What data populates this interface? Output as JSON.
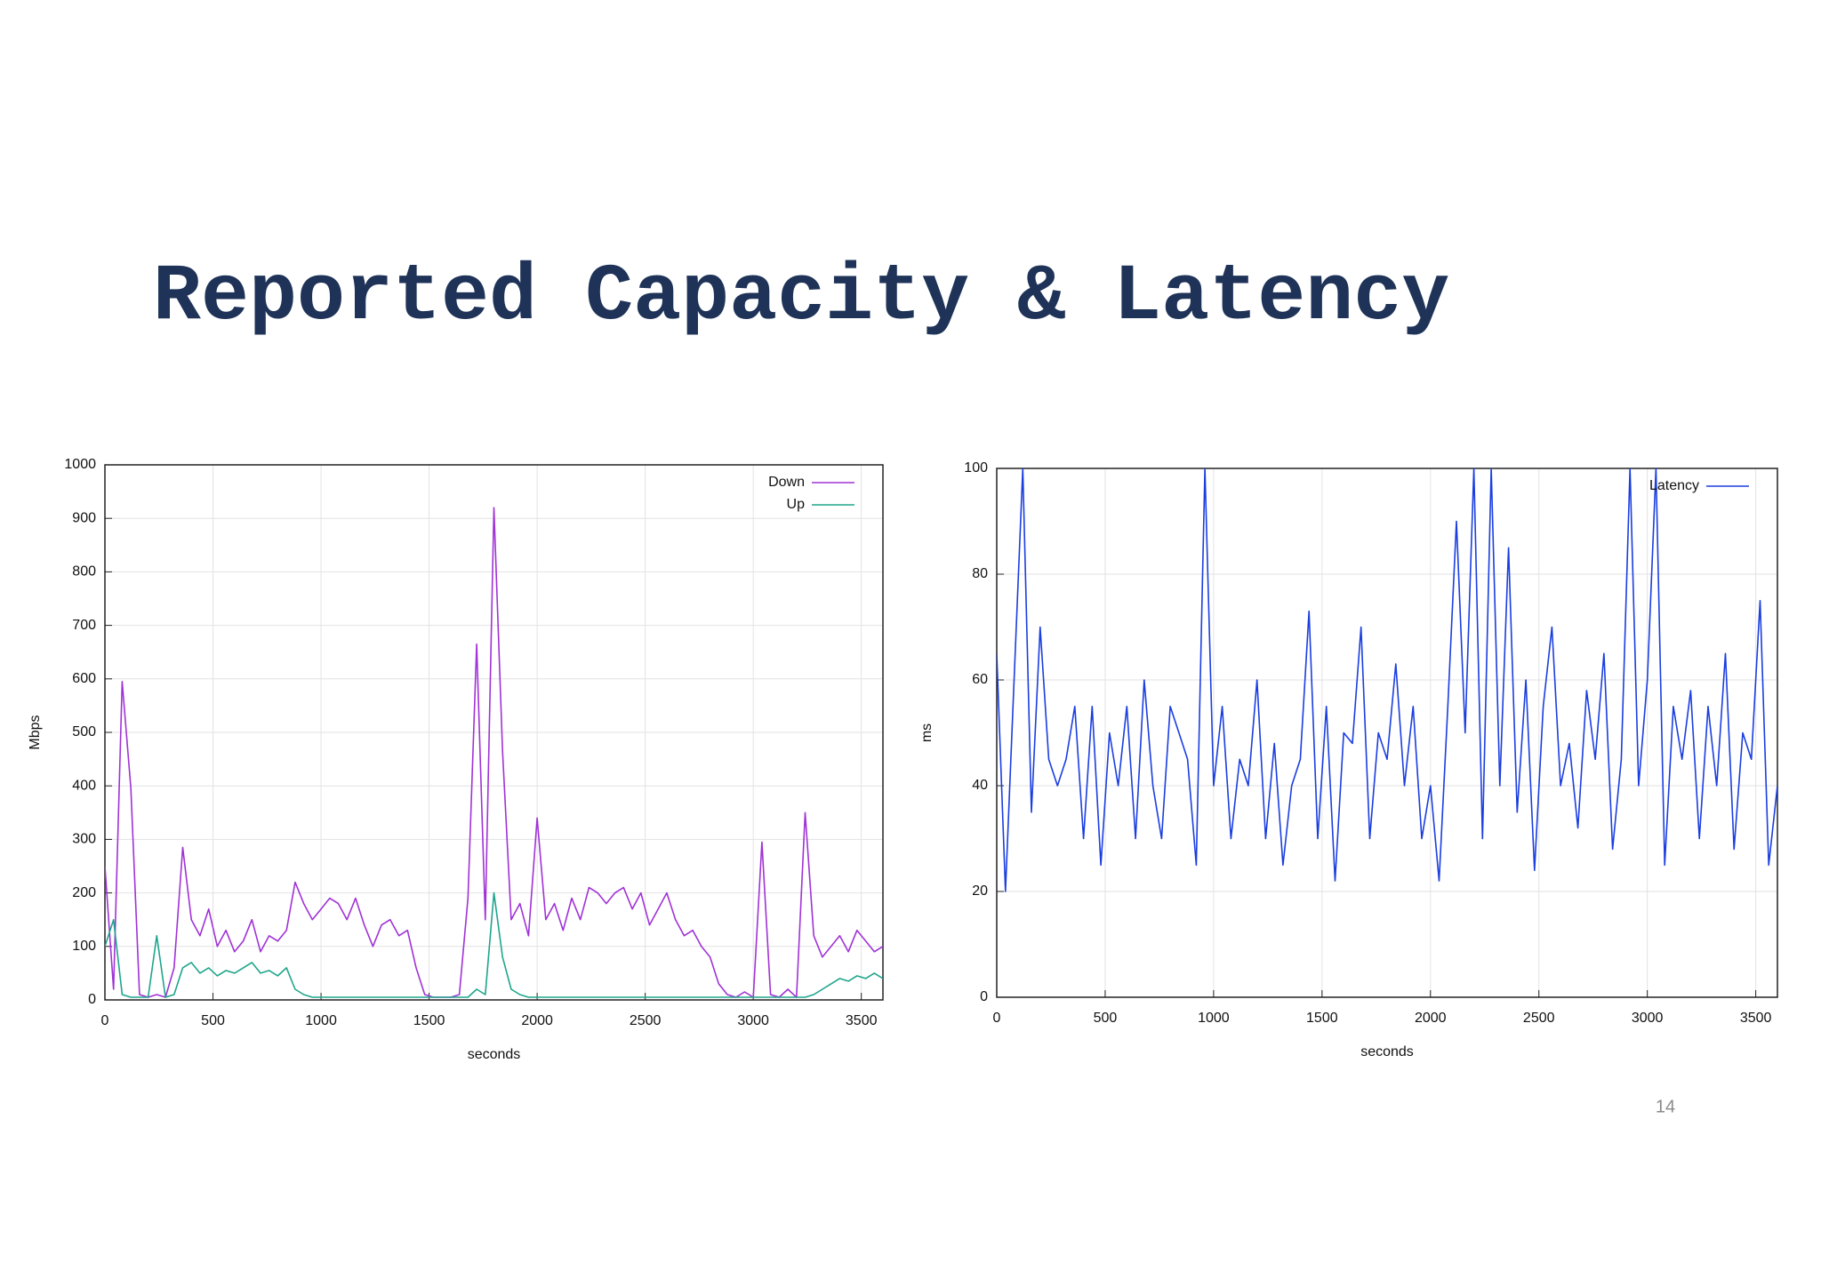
{
  "slide": {
    "title": "Reported Capacity & Latency",
    "page_number": "14"
  },
  "chart_data": [
    {
      "type": "line",
      "xlabel": "seconds",
      "ylabel": "Mbps",
      "xlim": [
        0,
        3600
      ],
      "ylim": [
        0,
        1000
      ],
      "xticks": [
        0,
        500,
        1000,
        1500,
        2000,
        2500,
        3000,
        3500
      ],
      "yticks": [
        0,
        100,
        200,
        300,
        400,
        500,
        600,
        700,
        800,
        900,
        1000
      ],
      "grid": true,
      "legend": "upper right",
      "x": [
        0,
        40,
        80,
        120,
        160,
        200,
        240,
        280,
        320,
        360,
        400,
        440,
        480,
        520,
        560,
        600,
        640,
        680,
        720,
        760,
        800,
        840,
        880,
        920,
        960,
        1000,
        1040,
        1080,
        1120,
        1160,
        1200,
        1240,
        1280,
        1320,
        1360,
        1400,
        1440,
        1480,
        1520,
        1560,
        1600,
        1640,
        1680,
        1720,
        1760,
        1800,
        1840,
        1880,
        1920,
        1960,
        2000,
        2040,
        2080,
        2120,
        2160,
        2200,
        2240,
        2280,
        2320,
        2360,
        2400,
        2440,
        2480,
        2520,
        2560,
        2600,
        2640,
        2680,
        2720,
        2760,
        2800,
        2840,
        2880,
        2920,
        2960,
        3000,
        3040,
        3080,
        3120,
        3160,
        3200,
        3240,
        3280,
        3320,
        3360,
        3400,
        3440,
        3480,
        3520,
        3560,
        3600
      ],
      "series": [
        {
          "name": "Down",
          "color": "#a032d6",
          "values": [
            250,
            20,
            595,
            395,
            10,
            5,
            10,
            5,
            60,
            285,
            150,
            120,
            170,
            100,
            130,
            90,
            110,
            150,
            90,
            120,
            110,
            130,
            220,
            180,
            150,
            170,
            190,
            180,
            150,
            190,
            140,
            100,
            140,
            150,
            120,
            130,
            60,
            10,
            5,
            5,
            5,
            10,
            190,
            665,
            150,
            920,
            465,
            150,
            180,
            120,
            340,
            150,
            180,
            130,
            190,
            150,
            210,
            200,
            180,
            200,
            210,
            170,
            200,
            140,
            170,
            200,
            150,
            120,
            130,
            100,
            80,
            30,
            10,
            5,
            15,
            5,
            295,
            10,
            5,
            20,
            5,
            350,
            120,
            80,
            100,
            120,
            90,
            130,
            110,
            90,
            100
          ]
        },
        {
          "name": "Up",
          "color": "#1ea58c",
          "values": [
            100,
            150,
            10,
            5,
            5,
            5,
            120,
            5,
            10,
            60,
            70,
            50,
            60,
            45,
            55,
            50,
            60,
            70,
            50,
            55,
            45,
            60,
            20,
            10,
            5,
            5,
            5,
            5,
            5,
            5,
            5,
            5,
            5,
            5,
            5,
            5,
            5,
            5,
            5,
            5,
            5,
            5,
            5,
            20,
            10,
            200,
            80,
            20,
            10,
            5,
            5,
            5,
            5,
            5,
            5,
            5,
            5,
            5,
            5,
            5,
            5,
            5,
            5,
            5,
            5,
            5,
            5,
            5,
            5,
            5,
            5,
            5,
            5,
            5,
            5,
            5,
            5,
            5,
            5,
            5,
            5,
            5,
            10,
            20,
            30,
            40,
            35,
            45,
            40,
            50,
            40
          ]
        }
      ]
    },
    {
      "type": "line",
      "xlabel": "seconds",
      "ylabel": "ms",
      "xlim": [
        0,
        3600
      ],
      "ylim": [
        0,
        100
      ],
      "xticks": [
        0,
        500,
        1000,
        1500,
        2000,
        2500,
        3000,
        3500
      ],
      "yticks": [
        0,
        20,
        40,
        60,
        80,
        100
      ],
      "grid": true,
      "legend": "upper right",
      "x": [
        0,
        40,
        80,
        120,
        160,
        200,
        240,
        280,
        320,
        360,
        400,
        440,
        480,
        520,
        560,
        600,
        640,
        680,
        720,
        760,
        800,
        840,
        880,
        920,
        960,
        1000,
        1040,
        1080,
        1120,
        1160,
        1200,
        1240,
        1280,
        1320,
        1360,
        1400,
        1440,
        1480,
        1520,
        1560,
        1600,
        1640,
        1680,
        1720,
        1760,
        1800,
        1840,
        1880,
        1920,
        1960,
        2000,
        2040,
        2080,
        2120,
        2160,
        2200,
        2240,
        2280,
        2320,
        2360,
        2400,
        2440,
        2480,
        2520,
        2560,
        2600,
        2640,
        2680,
        2720,
        2760,
        2800,
        2840,
        2880,
        2920,
        2960,
        3000,
        3040,
        3080,
        3120,
        3160,
        3200,
        3240,
        3280,
        3320,
        3360,
        3400,
        3440,
        3480,
        3520,
        3560,
        3600
      ],
      "series": [
        {
          "name": "Latency",
          "color": "#1a3ee0",
          "values": [
            65,
            20,
            60,
            100,
            35,
            70,
            45,
            40,
            45,
            55,
            30,
            55,
            25,
            50,
            40,
            55,
            30,
            60,
            40,
            30,
            55,
            50,
            45,
            25,
            100,
            40,
            55,
            30,
            45,
            40,
            60,
            30,
            48,
            25,
            40,
            45,
            73,
            30,
            55,
            22,
            50,
            48,
            70,
            30,
            50,
            45,
            63,
            40,
            55,
            30,
            40,
            22,
            55,
            90,
            50,
            100,
            30,
            100,
            40,
            85,
            35,
            60,
            24,
            55,
            70,
            40,
            48,
            32,
            58,
            45,
            65,
            28,
            45,
            100,
            40,
            60,
            100,
            25,
            55,
            45,
            58,
            30,
            55,
            40,
            65,
            28,
            50,
            45,
            75,
            25,
            40
          ]
        }
      ]
    }
  ]
}
